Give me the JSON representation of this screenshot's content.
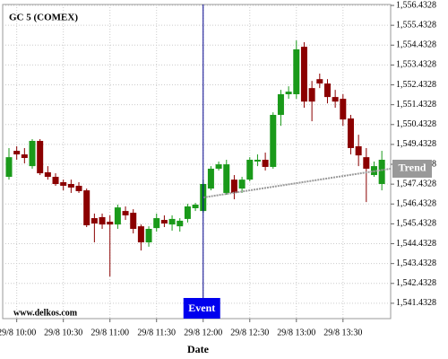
{
  "chart_data": {
    "type": "candlestick",
    "title": "GC 5 (COMEX)",
    "xlabel": "Date",
    "watermark": "www.delkos.com",
    "x": [
      null,
      "29/8 10:00",
      null,
      null,
      null,
      null,
      null,
      "29/8 10:30",
      null,
      null,
      null,
      null,
      null,
      "29/8 11:00",
      null,
      null,
      null,
      null,
      null,
      "29/8 11:30",
      null,
      null,
      null,
      null,
      null,
      "29/8 12:00",
      null,
      null,
      null,
      null,
      null,
      "29/8 12:30",
      null,
      null,
      null,
      null,
      null,
      "29/8 13:00",
      null,
      null,
      null,
      null,
      null,
      "29/8 13:30",
      null,
      null,
      null,
      null,
      null
    ],
    "open": [
      1547.8,
      1549.11,
      1548.93,
      1548.34,
      1549.61,
      1548.03,
      1547.8,
      1547.53,
      1547.44,
      1547.35,
      1547.12,
      1545.72,
      1545.77,
      1545.54,
      1545.4,
      1546.08,
      1545.99,
      1545.31,
      1544.5,
      1545.22,
      1545.63,
      1545.4,
      1545.31,
      1545.68,
      1546.22,
      1546.08,
      1547.21,
      1548.21,
      1546.99,
      1547.66,
      1547.21,
      1547.66,
      1548.57,
      1548.66,
      1548.3,
      1550.92,
      1551.96,
      1551.96,
      1554.35,
      1552.27,
      1552.72,
      1552.5,
      1551.82,
      1551.73,
      1550.74,
      1549.34,
      1548.79,
      1547.89,
      1547.44
    ],
    "high": [
      1549.25,
      1549.34,
      1549.25,
      1549.7,
      1549.7,
      1548.34,
      1547.98,
      1547.66,
      1547.66,
      1547.53,
      1547.21,
      1545.95,
      1545.95,
      1545.86,
      1546.4,
      1546.31,
      1546.17,
      1545.4,
      1545.31,
      1545.95,
      1545.86,
      1545.86,
      1545.72,
      1546.44,
      1546.49,
      1547.66,
      1548.34,
      1548.57,
      1548.66,
      1547.89,
      1547.8,
      1548.79,
      1548.93,
      1549.02,
      1551.05,
      1552.18,
      1552.36,
      1554.67,
      1554.58,
      1552.63,
      1553.0,
      1552.72,
      1552.18,
      1551.96,
      1550.92,
      1549.92,
      1549.25,
      1548.57,
      1549.11
    ],
    "low": [
      1547.66,
      1548.66,
      1548.48,
      1548.21,
      1547.89,
      1547.66,
      1547.35,
      1547.12,
      1546.99,
      1546.99,
      1545.27,
      1544.5,
      1545.18,
      1542.78,
      1545.18,
      1545.63,
      1544.95,
      1544.09,
      1544.28,
      1545.04,
      1545.27,
      1545.09,
      1545.04,
      1545.5,
      1546.08,
      1545.99,
      1547.12,
      1548.12,
      1546.9,
      1546.67,
      1546.99,
      1547.57,
      1548.34,
      1548.12,
      1548.21,
      1550.37,
      1551.73,
      1551.73,
      1551.28,
      1550.6,
      1552.27,
      1551.5,
      1551.28,
      1550.37,
      1548.93,
      1548.34,
      1546.53,
      1547.8,
      1547.12
    ],
    "close": [
      1548.79,
      1548.93,
      1548.75,
      1549.61,
      1547.98,
      1547.8,
      1547.44,
      1547.35,
      1547.26,
      1547.08,
      1545.36,
      1545.45,
      1545.4,
      1545.4,
      1546.26,
      1545.86,
      1545.18,
      1544.5,
      1545.18,
      1545.72,
      1545.45,
      1545.68,
      1545.59,
      1546.31,
      1546.4,
      1547.44,
      1548.21,
      1548.43,
      1548.43,
      1546.99,
      1547.66,
      1548.66,
      1548.66,
      1548.3,
      1550.92,
      1551.96,
      1552.09,
      1554.22,
      1551.59,
      1551.59,
      1552.5,
      1551.82,
      1551.59,
      1550.69,
      1549.25,
      1548.88,
      1548.21,
      1548.34,
      1548.66
    ],
    "up_color": "#1a9a1a",
    "down_color": "#8b0000",
    "ylim": [
      1540.66,
      1556.48
    ],
    "yticks": [
      {
        "value": 1541.4328,
        "label": "1,541.4328"
      },
      {
        "value": 1542.4328,
        "label": "1,542.4328"
      },
      {
        "value": 1543.4328,
        "label": "1,543.4328"
      },
      {
        "value": 1544.4328,
        "label": "1,544.4328"
      },
      {
        "value": 1545.4328,
        "label": "1,545.4328"
      },
      {
        "value": 1546.4328,
        "label": "1,546.4328"
      },
      {
        "value": 1547.4328,
        "label": "1,547.4328"
      },
      {
        "value": 1548.4328,
        "label": "1,548.4328"
      },
      {
        "value": 1549.4328,
        "label": "1,549.4328"
      },
      {
        "value": 1550.4328,
        "label": "1,550.4328"
      },
      {
        "value": 1551.4328,
        "label": "1,551.4328"
      },
      {
        "value": 1552.4328,
        "label": "1,552.4328"
      },
      {
        "value": 1553.4328,
        "label": "1,553.4328"
      },
      {
        "value": 1554.4328,
        "label": "1,554.4328"
      },
      {
        "value": 1555.4328,
        "label": "1,555.4328"
      },
      {
        "value": 1556.4328,
        "label": "1,556.4328"
      }
    ],
    "grid": true,
    "event": {
      "label": "Event",
      "x": "29/8 12:00",
      "color": "#0000ee"
    },
    "trend": {
      "name": "Trend",
      "values": [
        1546.76,
        1548.21
      ],
      "color": "#999999"
    }
  }
}
